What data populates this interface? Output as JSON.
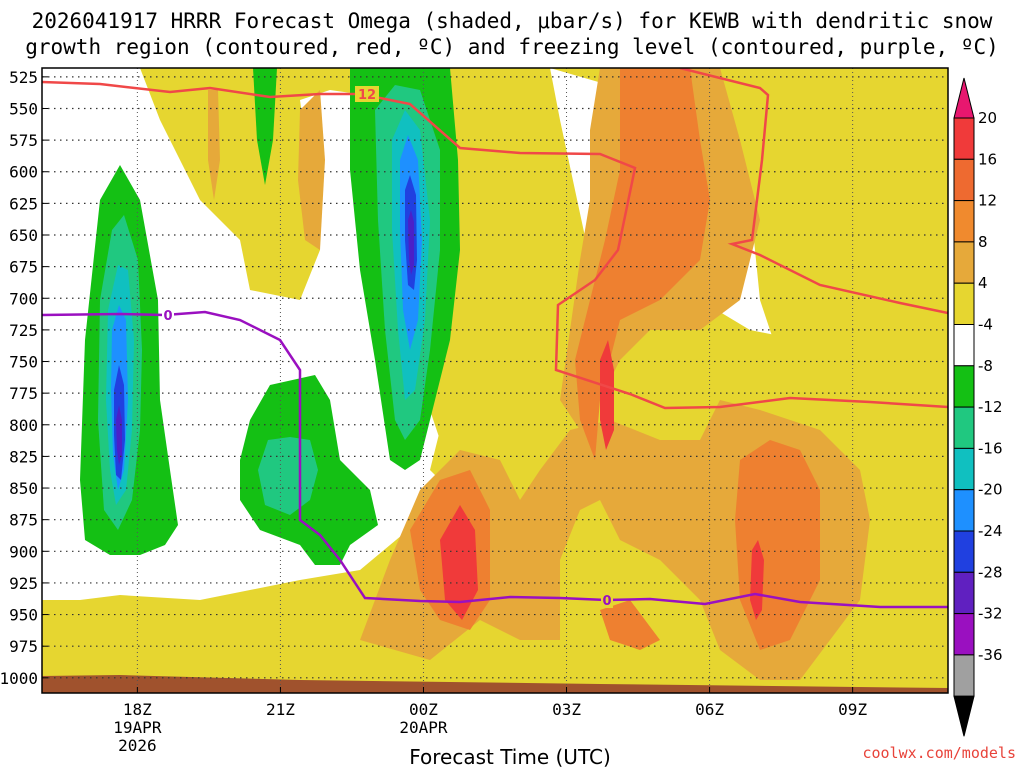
{
  "title_line1": "2026041917 HRRR Forecast Omega (shaded, μbar/s) for KEWB with dendritic snow",
  "title_line2": "growth region (contoured, red, ºC) and freezing level (contoured, purple, ºC)",
  "credit": "coolwx.com/models",
  "chart_data": {
    "type": "contour",
    "title": "2026041917 HRRR Forecast Omega (shaded, μbar/s) for KEWB with dendritic snow growth region (contoured, red, ºC) and freezing level (contoured, purple, ºC)",
    "xlabel": "Forecast Time (UTC)",
    "ylabel": "",
    "x_ticks": [
      {
        "label": "18Z",
        "sub1": "19APR",
        "sub2": "2026",
        "hour": 1
      },
      {
        "label": "21Z",
        "sub1": "",
        "sub2": "",
        "hour": 4
      },
      {
        "label": "00Z",
        "sub1": "20APR",
        "sub2": "",
        "hour": 7
      },
      {
        "label": "03Z",
        "sub1": "",
        "sub2": "",
        "hour": 10
      },
      {
        "label": "06Z",
        "sub1": "",
        "sub2": "",
        "hour": 13
      },
      {
        "label": "09Z",
        "sub1": "",
        "sub2": "",
        "hour": 16
      }
    ],
    "x_range_hours": [
      -1,
      18
    ],
    "y_ticks": [
      525,
      550,
      575,
      600,
      625,
      650,
      675,
      700,
      725,
      750,
      775,
      800,
      825,
      850,
      875,
      900,
      925,
      950,
      975,
      1000
    ],
    "y_range_hpa": [
      518,
      1012
    ],
    "grid": true,
    "colorbar": {
      "labels": [
        "20",
        "16",
        "12",
        "8",
        "4",
        "-4",
        "-8",
        "-12",
        "-16",
        "-20",
        "-24",
        "-28",
        "-32",
        "-36"
      ],
      "colors": [
        "#e8176f",
        "#f03a3a",
        "#ee6a30",
        "#f08a2e",
        "#e6a93a",
        "#e6d630",
        "#ffffff",
        "#14c014",
        "#20c880",
        "#10c0c0",
        "#1e90ff",
        "#2040e0",
        "#6020c0",
        "#9a10c0",
        "#a0a0a0",
        "#000000"
      ]
    },
    "contours": [
      {
        "name": "freezing",
        "label": "0",
        "color": "#9a10c0"
      },
      {
        "name": "dendritic",
        "label": "-12",
        "color": "#f04848"
      }
    ]
  }
}
